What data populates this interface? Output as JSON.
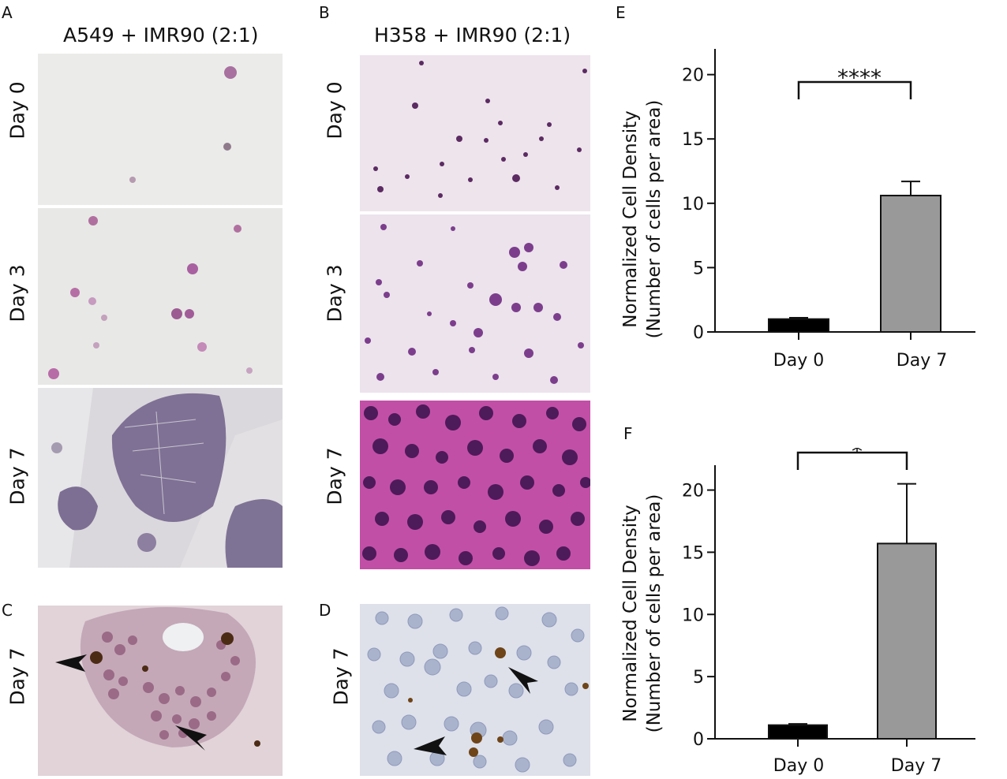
{
  "panels": {
    "A": {
      "letter": "A",
      "title": "A549 + IMR90 (2:1)",
      "rows": [
        "Day 0",
        "Day 3",
        "Day 7"
      ]
    },
    "B": {
      "letter": "B",
      "title": "H358 + IMR90 (2:1)",
      "rows": [
        "Day 0",
        "Day 3",
        "Day 7"
      ]
    },
    "C": {
      "letter": "C",
      "row": "Day 7"
    },
    "D": {
      "letter": "D",
      "row": "Day 7"
    },
    "E": {
      "letter": "E"
    },
    "F": {
      "letter": "F"
    }
  },
  "colors": {
    "day0_bar": "#000000",
    "day7_bar": "#999999",
    "he_stain": "#c24fa6",
    "ihc_stain": "#6e4418"
  },
  "chart_data": [
    {
      "panel": "E",
      "type": "bar",
      "categories": [
        "Day 0",
        "Day 7"
      ],
      "values": [
        1.0,
        10.6
      ],
      "errors": [
        0.1,
        1.1
      ],
      "ylabel_line1": "Normalized Cell  Density",
      "ylabel_line2": "(Number of cells per area)",
      "ylim": [
        0,
        22
      ],
      "yticks": [
        0,
        5,
        10,
        15,
        20
      ],
      "significance": "****"
    },
    {
      "panel": "F",
      "type": "bar",
      "categories": [
        "Day 0",
        "Day 7"
      ],
      "values": [
        1.1,
        15.7
      ],
      "errors": [
        0.1,
        4.8
      ],
      "ylabel_line1": "Normalized Cell  Density",
      "ylabel_line2": "(Number of cells per area)",
      "ylim": [
        0,
        22
      ],
      "yticks": [
        0,
        5,
        10,
        15,
        20
      ],
      "significance": "*"
    }
  ]
}
